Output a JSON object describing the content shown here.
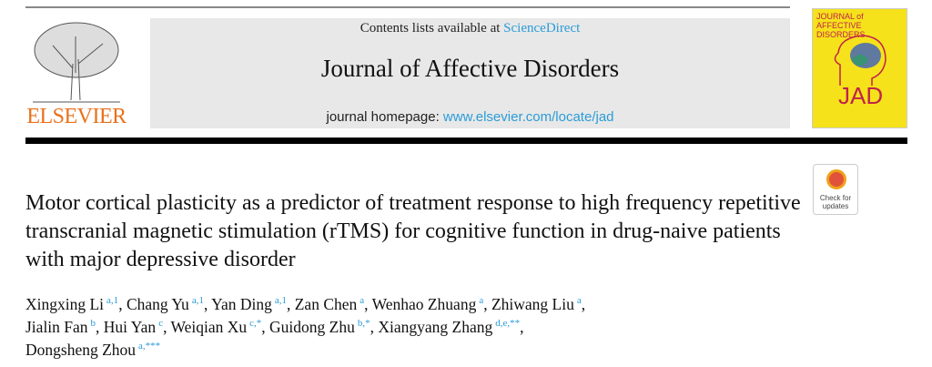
{
  "header": {
    "publisher_logo_text": "ELSEVIER",
    "contents_prefix": "Contents lists available at ",
    "contents_link": "ScienceDirect",
    "journal_title": "Journal of Affective Disorders",
    "homepage_prefix": "journal homepage: ",
    "homepage_link": "www.elsevier.com/locate/jad",
    "cover": {
      "title_line1": "JOURNAL of",
      "title_line2": "AFFECTIVE DISORDERS",
      "abbrev": "JAD"
    }
  },
  "badge": {
    "line1": "Check for",
    "line2": "updates"
  },
  "article": {
    "title": "Motor cortical plasticity as a predictor of treatment response to high frequency repetitive transcranial magnetic stimulation (rTMS) for cognitive function in drug-naive patients with major depressive disorder",
    "authors": [
      {
        "name": "Xingxing Li",
        "sup": "a,1"
      },
      {
        "name": "Chang Yu",
        "sup": "a,1"
      },
      {
        "name": "Yan Ding",
        "sup": "a,1"
      },
      {
        "name": "Zan Chen",
        "sup": "a"
      },
      {
        "name": "Wenhao Zhuang",
        "sup": "a"
      },
      {
        "name": "Zhiwang Liu",
        "sup": "a"
      },
      {
        "name": "Jialin Fan",
        "sup": "b"
      },
      {
        "name": "Hui Yan",
        "sup": "c"
      },
      {
        "name": "Weiqian Xu",
        "sup": "c,*"
      },
      {
        "name": "Guidong Zhu",
        "sup": "b,*"
      },
      {
        "name": "Xiangyang Zhang",
        "sup": "d,e,**"
      },
      {
        "name": "Dongsheng Zhou",
        "sup": "a,***"
      }
    ]
  },
  "colors": {
    "link": "#2a9cd8",
    "elsevier_orange": "#e9711c",
    "cover_yellow": "#f5e21a",
    "banner_grey": "#e8e8e8"
  }
}
